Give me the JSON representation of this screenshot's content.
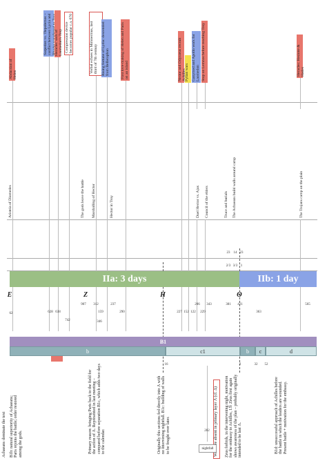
{
  "top_events": [
    {
      "text": "Abduction of Helen",
      "style": "red"
    },
    {
      "text": "Sarpedon vs. Tlepolemos – conflict between Lycia and Rhodes transferred to Troy",
      "style": "blue"
    },
    {
      "text": "Heracles' sack of Laomedon's Troy",
      "style": "red"
    },
    {
      "text": "Compression device becomes popular c.a. 670",
      "style": "outline"
    },
    {
      "text": "Verbal echoes in Mimnermus, last third of 7th century",
      "style": "outline"
    },
    {
      "text": "Rising fortune of Lydia: descended from Bellerophon",
      "style": "blue"
    },
    {
      "text": "First love-making of Helen and Paris on an island",
      "style": "red"
    },
    {
      "text": "Nestor and Odysseus recruit Achilles",
      "style": "red"
    },
    {
      "text": "Pylian wars",
      "style": "yellow"
    },
    {
      "text": "Ganymed and Apollo work for Laomedon",
      "style": "blue"
    },
    {
      "text": "Stop on Lemnos before reaching Troy",
      "style": "red"
    },
    {
      "text": "Heracles: Hesione & Hades",
      "style": "red"
    }
  ],
  "scene_labels": [
    "Aristeia of Diomedes",
    "The gods leave the battle",
    "Marshalling of Hector",
    "Hector in Troy",
    "Duel Hector vs. Ajax",
    "Council of the elders",
    "Truce and burials",
    "The Achaeans build walls around camp",
    "The Trojans camp on the plain"
  ],
  "fractions": [
    "23",
    "14",
    "23",
    "2/3",
    "3/3",
    "1"
  ],
  "day_bars": [
    "IIa:  3 days",
    "IIb:  1 day"
  ],
  "books": [
    "E",
    "Z",
    "H",
    "Θ"
  ],
  "line_numbers": [
    "62",
    "628",
    "638",
    "742",
    "907",
    "312",
    "159",
    "346",
    "237",
    "290",
    "227",
    "152",
    "122",
    "206",
    "229",
    "343",
    "381",
    "421",
    "363",
    "565"
  ],
  "layer_bar": "B1",
  "sublayers": [
    "b",
    "c1",
    "b",
    "c",
    "d"
  ],
  "sub_numbers": [
    "16",
    "2",
    "32",
    "52"
  ],
  "notes": [
    {
      "text": "Achaeans dominate the text",
      "style": "plain"
    },
    {
      "text": "B1b: natural superiority of Achaeans; Paris rejoins the battle; order restored among the gods.",
      "style": "plain"
    },
    {
      "text": "Primary reason: bringing Paris back to the field for the action of Λ. Represented in last meeting – compared before separation B1c, which adds two days to the calendar.",
      "style": "plain"
    },
    {
      "text": "Originally this sections fed directly into Λ with no intervening nightfall. B1c: building of walls to be fought over later.",
      "style": "plain"
    },
    {
      "text": "Walls are absent in primary layer Λ (cf. Δ)",
      "style": "outline"
    },
    {
      "text": "Zeus forbids, in the intervening night, motivation for the embassy to Achilles, I.9: Zeus first again shows awareness of the plan – probably originally intended to be last Λ.",
      "style": "plain"
    },
    {
      "text": "B1d: unsuccessful approach of Achilles before the battle in which the leaders are wounded. Present battle + motivation for the embassy.",
      "style": "plain"
    }
  ],
  "nightfall": {
    "number": "282",
    "label": "nightfall"
  }
}
